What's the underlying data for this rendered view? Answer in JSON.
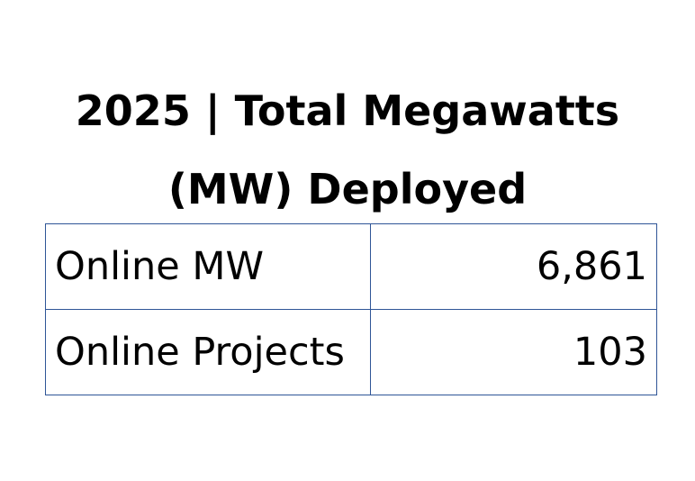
{
  "title": {
    "line1": "2025 | Total Megawatts",
    "line2": "(MW) Deployed"
  },
  "table": {
    "rows": [
      {
        "label": "Online MW",
        "value": "6,861"
      },
      {
        "label": "Online Projects",
        "value": "103"
      }
    ]
  },
  "colors": {
    "border": "#2f5597",
    "text": "#000000",
    "background": "#ffffff"
  }
}
